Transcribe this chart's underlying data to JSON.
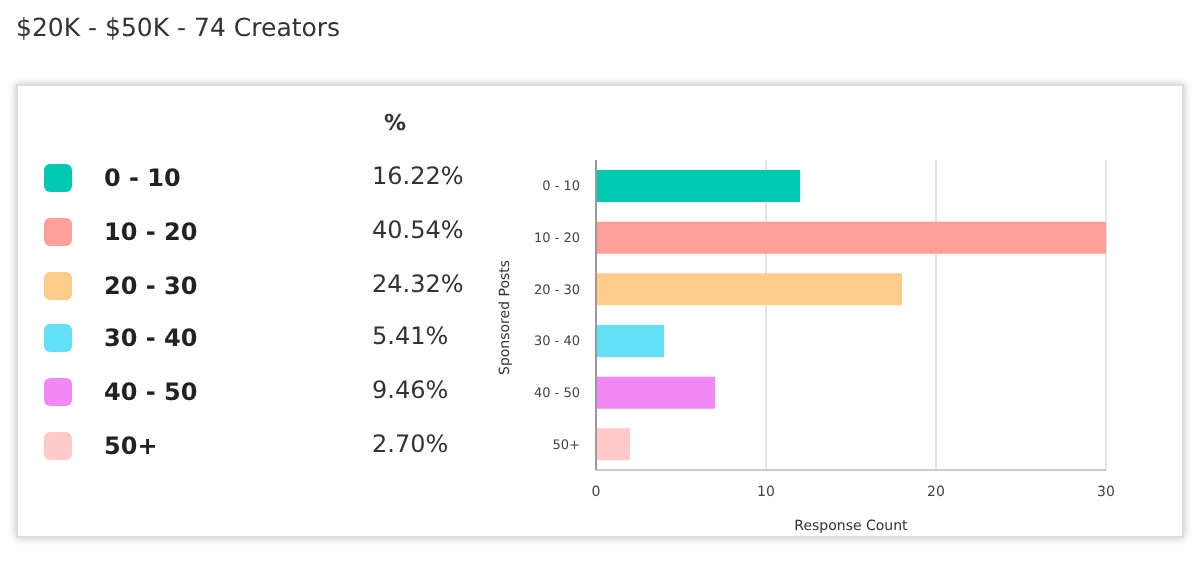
{
  "chart_data": {
    "type": "bar",
    "orientation": "horizontal",
    "title": "$20K - $50K - 74 Creators",
    "xlabel": "Response Count",
    "ylabel": "Sponsored Posts",
    "legend_title": "%",
    "categories": [
      "0 - 10",
      "10 - 20",
      "20 - 30",
      "30 - 40",
      "40 - 50",
      "50+"
    ],
    "values": [
      12,
      30,
      18,
      4,
      7,
      2
    ],
    "colors": [
      "#00c9b1",
      "#ff9f97",
      "#ffcd89",
      "#63e0f7",
      "#f188f5",
      "#ffcaca"
    ],
    "annotations": [
      "16.22%",
      "40.54%",
      "24.32%",
      "5.41%",
      "9.46%",
      "2.70%"
    ],
    "xlim": [
      0,
      30
    ],
    "xticks": [
      0,
      10,
      20,
      30
    ],
    "grid": "x"
  }
}
